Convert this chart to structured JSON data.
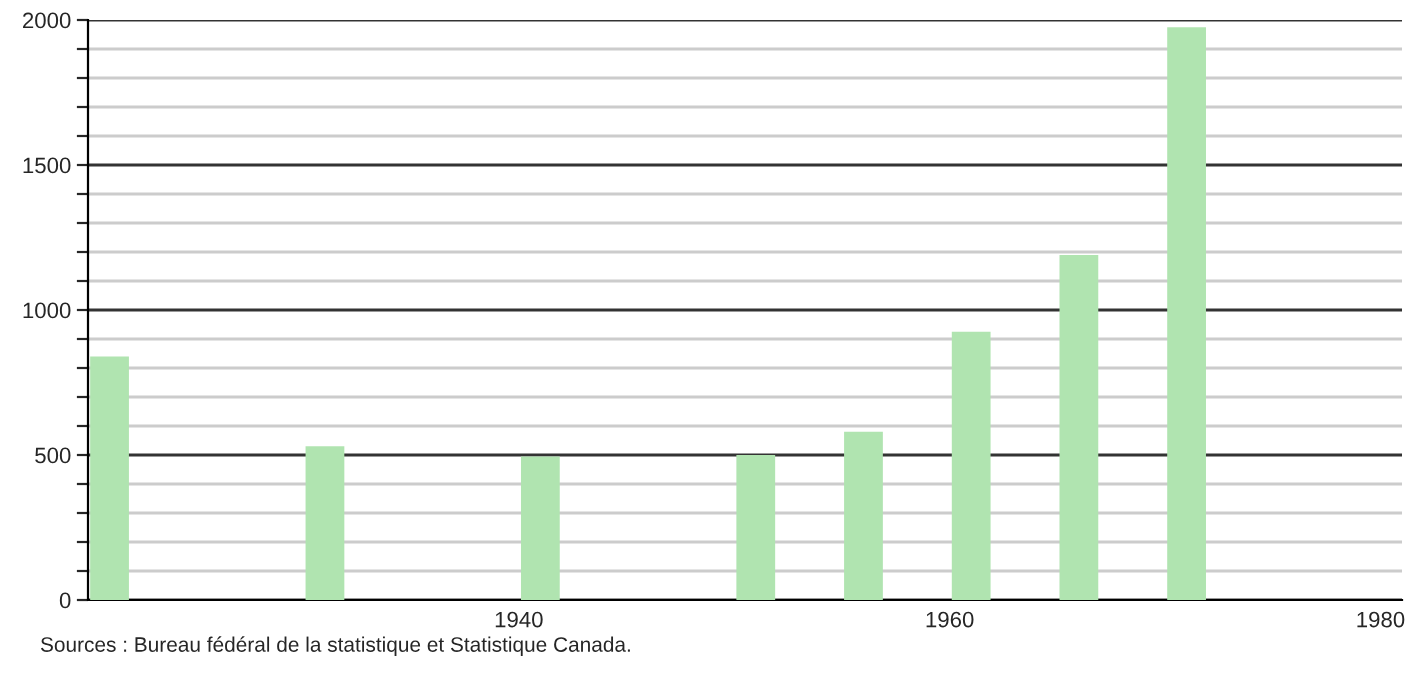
{
  "chart_data": {
    "type": "bar",
    "x": [
      1921,
      1931,
      1941,
      1951,
      1956,
      1961,
      1966,
      1971
    ],
    "values": [
      840,
      530,
      495,
      500,
      580,
      925,
      1190,
      1975
    ],
    "color": "#b0e4b0",
    "xlim": [
      1920,
      1981
    ],
    "xticks": [
      1940,
      1960,
      1980
    ],
    "ylim": [
      0,
      2000
    ],
    "yticks": [
      0,
      {
        "value": 100,
        "label": null
      },
      {
        "value": 200,
        "label": null
      },
      {
        "value": 300,
        "label": null
      },
      {
        "value": 400,
        "label": null
      },
      500,
      {
        "value": 600,
        "label": null
      },
      {
        "value": 700,
        "label": null
      },
      {
        "value": 800,
        "label": null
      },
      {
        "value": 900,
        "label": null
      },
      1000,
      {
        "value": 1100,
        "label": null
      },
      {
        "value": 1200,
        "label": null
      },
      {
        "value": 1300,
        "label": null
      },
      {
        "value": 1400,
        "label": null
      },
      1500,
      {
        "value": 1600,
        "label": null
      },
      {
        "value": 1700,
        "label": null
      },
      {
        "value": 1800,
        "label": null
      },
      {
        "value": 1900,
        "label": null
      },
      2000
    ],
    "grid": "y",
    "annotations": [
      "Sources : Bureau fédéral de la statistique et Statistique Canada."
    ]
  }
}
